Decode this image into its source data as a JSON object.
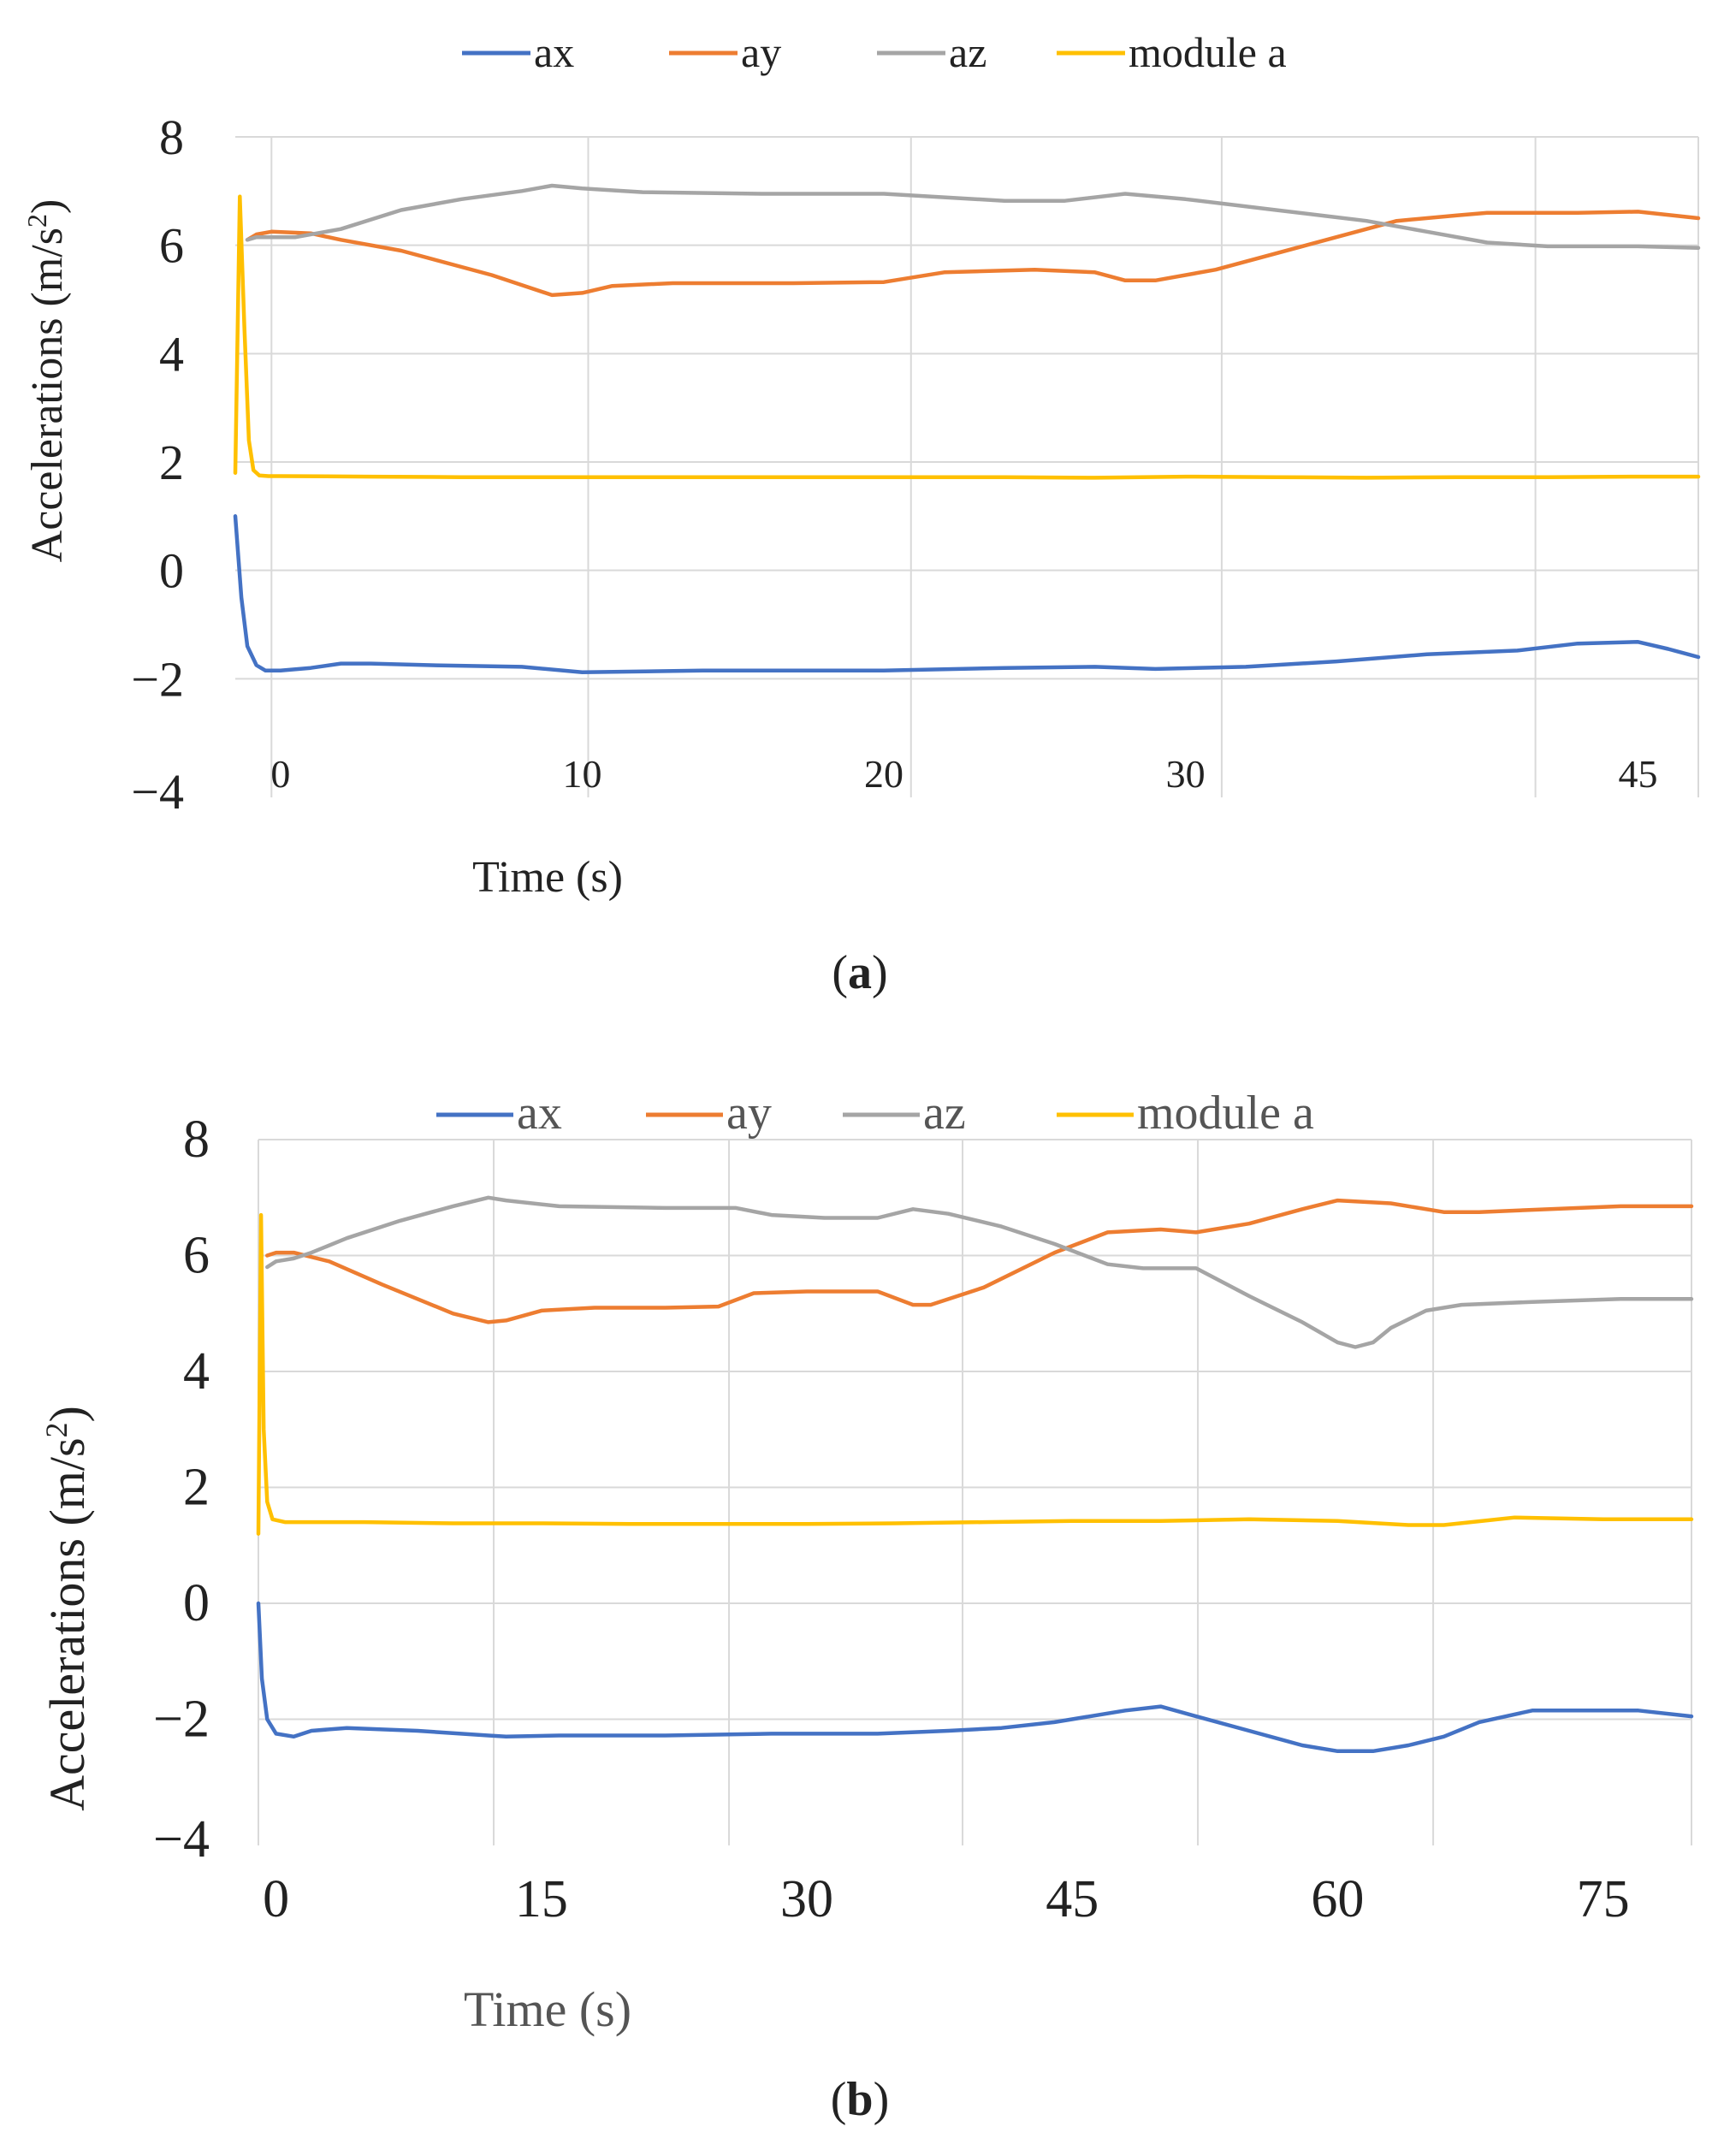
{
  "colors": {
    "ax": "#4472C4",
    "ay": "#ED7D31",
    "az": "#A5A5A5",
    "module_a": "#FFC000",
    "grid": "#D9D9D9",
    "text": "#222222"
  },
  "chart_data": [
    {
      "type": "line",
      "caption_open": "(",
      "caption_letter": "a",
      "caption_close": ")",
      "xlabel": "Time (s)",
      "ylabel_main": "Accelerations (m/s",
      "ylabel_sup": "2",
      "ylabel_close": ")",
      "ylim": [
        -4,
        8
      ],
      "xlim": [
        -1.5,
        47
      ],
      "yticks": [
        {
          "value": 8,
          "label": "8"
        },
        {
          "value": 6,
          "label": "6"
        },
        {
          "value": 4,
          "label": "4"
        },
        {
          "value": 2,
          "label": "2"
        },
        {
          "value": 0,
          "label": "0"
        },
        {
          "value": -2,
          "label": "−2"
        },
        {
          "value": -4,
          "label": "−4"
        }
      ],
      "xticks": [
        {
          "value": 0,
          "label": "0"
        },
        {
          "value": 10,
          "label": "10"
        },
        {
          "value": 20,
          "label": "20"
        },
        {
          "value": 30,
          "label": "30"
        },
        {
          "value": 45,
          "label": "45"
        }
      ],
      "vgrid": [
        -0.3,
        10.2,
        20.9,
        31.2,
        41.6,
        47
      ],
      "legend": [
        "ax",
        "ay",
        "az",
        "module a"
      ],
      "series": [
        {
          "name": "ax",
          "color_key": "ax",
          "x": [
            -1.5,
            -1.3,
            -1.1,
            -0.8,
            -0.5,
            0,
            1,
            2,
            3,
            5,
            8,
            10,
            14,
            20,
            24,
            27,
            29,
            32,
            35,
            38,
            41,
            43,
            45,
            46,
            47
          ],
          "y": [
            1.0,
            -0.5,
            -1.4,
            -1.75,
            -1.85,
            -1.85,
            -1.8,
            -1.72,
            -1.72,
            -1.75,
            -1.78,
            -1.88,
            -1.85,
            -1.85,
            -1.8,
            -1.78,
            -1.82,
            -1.78,
            -1.68,
            -1.55,
            -1.48,
            -1.35,
            -1.32,
            -1.45,
            -1.6
          ]
        },
        {
          "name": "ay",
          "color_key": "ay",
          "x": [
            -1.1,
            -0.8,
            -0.3,
            1,
            2,
            4,
            7,
            9,
            10,
            11,
            13,
            17,
            20,
            22,
            25,
            27,
            28,
            29,
            31,
            34,
            37,
            39,
            40,
            41,
            43,
            45,
            47
          ],
          "y": [
            6.1,
            6.2,
            6.25,
            6.22,
            6.1,
            5.9,
            5.45,
            5.08,
            5.12,
            5.25,
            5.3,
            5.3,
            5.32,
            5.5,
            5.55,
            5.5,
            5.35,
            5.35,
            5.55,
            6.0,
            6.45,
            6.55,
            6.6,
            6.6,
            6.6,
            6.62,
            6.5
          ]
        },
        {
          "name": "az",
          "color_key": "az",
          "x": [
            -1.1,
            -0.8,
            -0.3,
            0.5,
            2,
            4,
            6,
            8,
            9,
            10,
            12,
            16,
            20,
            24,
            26,
            28,
            30,
            33,
            36,
            38,
            40,
            42,
            45,
            47
          ],
          "y": [
            6.1,
            6.15,
            6.15,
            6.15,
            6.3,
            6.65,
            6.85,
            7.0,
            7.1,
            7.05,
            6.98,
            6.95,
            6.95,
            6.82,
            6.82,
            6.95,
            6.85,
            6.65,
            6.45,
            6.25,
            6.05,
            5.98,
            5.98,
            5.95
          ]
        },
        {
          "name": "module a",
          "color_key": "module_a",
          "x": [
            -1.5,
            -1.35,
            -1.2,
            -1.05,
            -0.9,
            -0.7,
            -0.4,
            0,
            3,
            6,
            9,
            12,
            15,
            18,
            21,
            24,
            27,
            30,
            33,
            36,
            39,
            42,
            45,
            47
          ],
          "y": [
            1.8,
            6.9,
            4.5,
            2.4,
            1.85,
            1.75,
            1.74,
            1.74,
            1.73,
            1.72,
            1.72,
            1.72,
            1.72,
            1.72,
            1.72,
            1.72,
            1.71,
            1.73,
            1.72,
            1.71,
            1.72,
            1.72,
            1.73,
            1.73
          ]
        }
      ]
    },
    {
      "type": "line",
      "caption_open": "(",
      "caption_letter": "b",
      "caption_close": ")",
      "xlabel": "Time (s)",
      "ylabel_main": "Accelerations (m/s",
      "ylabel_sup": "2",
      "ylabel_close": ")",
      "ylim": [
        -4,
        8
      ],
      "xlim": [
        -1,
        80
      ],
      "yticks": [
        {
          "value": 8,
          "label": "8"
        },
        {
          "value": 6,
          "label": "6"
        },
        {
          "value": 4,
          "label": "4"
        },
        {
          "value": 2,
          "label": "2"
        },
        {
          "value": 0,
          "label": "0"
        },
        {
          "value": -2,
          "label": "−2"
        },
        {
          "value": -4,
          "label": "−4"
        }
      ],
      "xticks": [
        {
          "value": 0,
          "label": "0"
        },
        {
          "value": 15,
          "label": "15"
        },
        {
          "value": 30,
          "label": "30"
        },
        {
          "value": 45,
          "label": "45"
        },
        {
          "value": 60,
          "label": "60"
        },
        {
          "value": 75,
          "label": "75"
        }
      ],
      "vgrid": [
        -1,
        12.3,
        25.6,
        38.8,
        52.1,
        65.4,
        80
      ],
      "legend": [
        "ax",
        "ay",
        "az",
        "module a"
      ],
      "series": [
        {
          "name": "ax",
          "color_key": "ax",
          "x": [
            -1,
            -0.8,
            -0.5,
            0,
            1,
            2,
            4,
            8,
            12,
            13,
            16,
            22,
            28,
            34,
            38,
            41,
            44,
            48,
            50,
            52,
            55,
            58,
            60,
            62,
            64,
            66,
            68,
            71,
            74,
            77,
            80
          ],
          "y": [
            0.0,
            -1.3,
            -2.0,
            -2.25,
            -2.3,
            -2.2,
            -2.15,
            -2.2,
            -2.28,
            -2.3,
            -2.28,
            -2.28,
            -2.25,
            -2.25,
            -2.2,
            -2.15,
            -2.05,
            -1.85,
            -1.78,
            -1.95,
            -2.2,
            -2.45,
            -2.55,
            -2.55,
            -2.45,
            -2.3,
            -2.05,
            -1.85,
            -1.85,
            -1.85,
            -1.95
          ]
        },
        {
          "name": "ay",
          "color_key": "ay",
          "x": [
            -0.5,
            0,
            1,
            3,
            6,
            10,
            12,
            13,
            15,
            18,
            22,
            25,
            27,
            30,
            34,
            36,
            37,
            40,
            44,
            47,
            50,
            52,
            55,
            58,
            60,
            63,
            66,
            68,
            72,
            76,
            80
          ],
          "y": [
            6.0,
            6.05,
            6.05,
            5.9,
            5.5,
            5.0,
            4.85,
            4.88,
            5.05,
            5.1,
            5.1,
            5.12,
            5.35,
            5.38,
            5.38,
            5.15,
            5.15,
            5.45,
            6.05,
            6.4,
            6.45,
            6.4,
            6.55,
            6.8,
            6.95,
            6.9,
            6.75,
            6.75,
            6.8,
            6.85,
            6.85
          ]
        },
        {
          "name": "az",
          "color_key": "az",
          "x": [
            -0.5,
            0,
            1,
            2,
            4,
            7,
            10,
            12,
            13,
            16,
            22,
            26,
            28,
            31,
            34,
            36,
            38,
            41,
            44,
            47,
            49,
            52,
            55,
            58,
            60,
            61,
            62,
            63,
            65,
            67,
            71,
            76,
            80
          ],
          "y": [
            5.8,
            5.9,
            5.95,
            6.05,
            6.3,
            6.6,
            6.85,
            7.0,
            6.95,
            6.85,
            6.82,
            6.82,
            6.7,
            6.65,
            6.65,
            6.8,
            6.72,
            6.5,
            6.2,
            5.85,
            5.78,
            5.78,
            5.3,
            4.85,
            4.5,
            4.42,
            4.5,
            4.75,
            5.05,
            5.15,
            5.2,
            5.25,
            5.25
          ]
        },
        {
          "name": "module a",
          "color_key": "module_a",
          "x": [
            -1,
            -0.85,
            -0.7,
            -0.5,
            -0.2,
            0.5,
            5,
            10,
            15,
            20,
            25,
            30,
            35,
            40,
            45,
            50,
            55,
            60,
            64,
            66,
            70,
            75,
            80
          ],
          "y": [
            1.2,
            6.7,
            3.0,
            1.75,
            1.45,
            1.4,
            1.4,
            1.38,
            1.38,
            1.37,
            1.37,
            1.37,
            1.38,
            1.4,
            1.42,
            1.42,
            1.45,
            1.42,
            1.35,
            1.35,
            1.48,
            1.45,
            1.45
          ]
        }
      ]
    }
  ]
}
